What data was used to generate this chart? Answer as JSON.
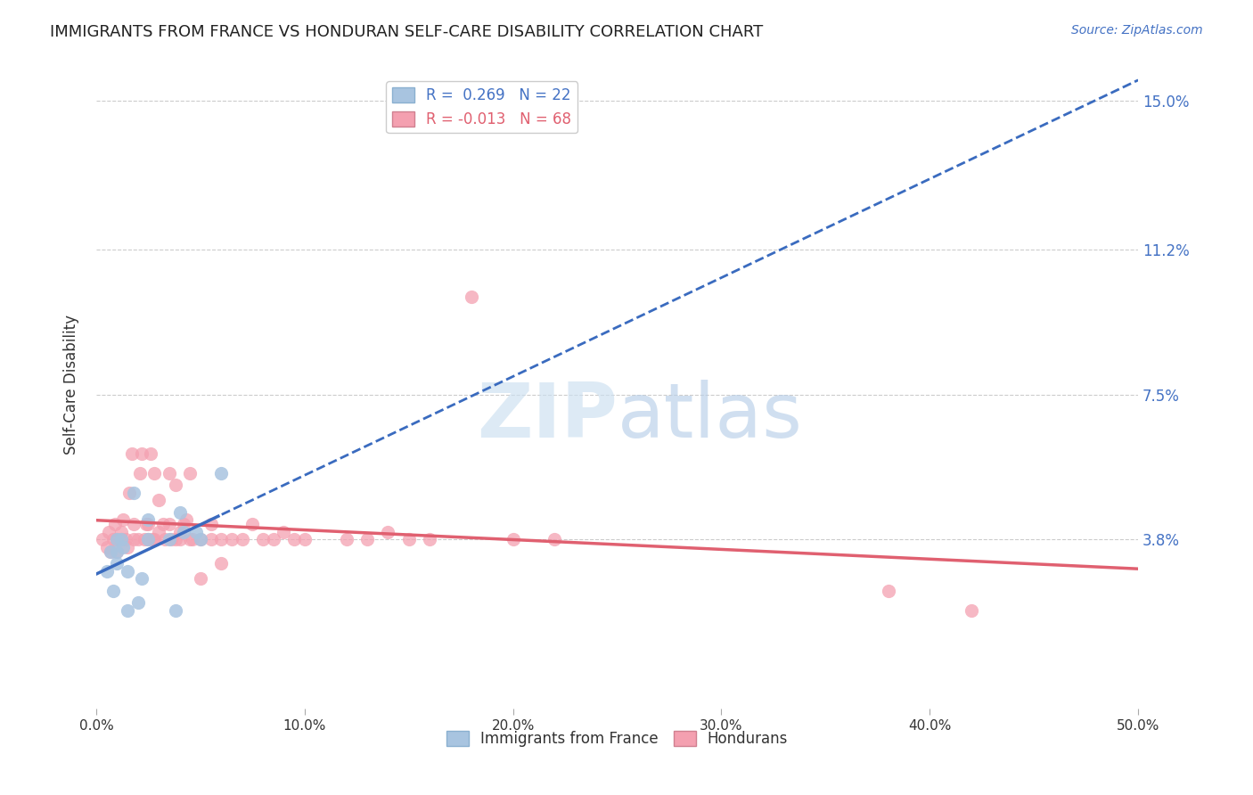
{
  "title": "IMMIGRANTS FROM FRANCE VS HONDURAN SELF-CARE DISABILITY CORRELATION CHART",
  "source": "Source: ZipAtlas.com",
  "ylabel": "Self-Care Disability",
  "ytick_labels": [
    "3.8%",
    "7.5%",
    "11.2%",
    "15.0%"
  ],
  "ytick_values": [
    0.038,
    0.075,
    0.112,
    0.15
  ],
  "xlim": [
    0.0,
    0.5
  ],
  "ylim": [
    -0.005,
    0.16
  ],
  "legend_1": "R =  0.269   N = 22",
  "legend_2": "R = -0.013   N = 68",
  "color_blue": "#a8c4e0",
  "color_pink": "#f4a0b0",
  "line_blue": "#3a6bbf",
  "line_pink": "#e06070",
  "france_x": [
    0.005,
    0.007,
    0.008,
    0.01,
    0.01,
    0.01,
    0.012,
    0.013,
    0.015,
    0.015,
    0.018,
    0.02,
    0.022,
    0.025,
    0.025,
    0.035,
    0.038,
    0.04,
    0.042,
    0.048,
    0.05,
    0.06
  ],
  "france_y": [
    0.03,
    0.035,
    0.025,
    0.035,
    0.038,
    0.032,
    0.038,
    0.036,
    0.02,
    0.03,
    0.05,
    0.022,
    0.028,
    0.038,
    0.043,
    0.038,
    0.02,
    0.045,
    0.04,
    0.04,
    0.038,
    0.055
  ],
  "honduran_x": [
    0.003,
    0.005,
    0.006,
    0.007,
    0.008,
    0.009,
    0.01,
    0.01,
    0.012,
    0.012,
    0.013,
    0.014,
    0.015,
    0.016,
    0.017,
    0.018,
    0.018,
    0.02,
    0.021,
    0.022,
    0.023,
    0.024,
    0.025,
    0.025,
    0.026,
    0.027,
    0.028,
    0.028,
    0.03,
    0.03,
    0.032,
    0.033,
    0.035,
    0.035,
    0.036,
    0.038,
    0.038,
    0.04,
    0.04,
    0.042,
    0.043,
    0.045,
    0.045,
    0.046,
    0.05,
    0.05,
    0.055,
    0.055,
    0.06,
    0.06,
    0.065,
    0.07,
    0.075,
    0.08,
    0.085,
    0.09,
    0.095,
    0.1,
    0.12,
    0.13,
    0.14,
    0.15,
    0.16,
    0.18,
    0.2,
    0.22,
    0.38,
    0.42
  ],
  "honduran_y": [
    0.038,
    0.036,
    0.04,
    0.035,
    0.038,
    0.042,
    0.038,
    0.035,
    0.04,
    0.038,
    0.043,
    0.038,
    0.036,
    0.05,
    0.06,
    0.038,
    0.042,
    0.038,
    0.055,
    0.06,
    0.038,
    0.042,
    0.038,
    0.042,
    0.06,
    0.038,
    0.055,
    0.038,
    0.04,
    0.048,
    0.042,
    0.038,
    0.042,
    0.055,
    0.038,
    0.052,
    0.038,
    0.04,
    0.038,
    0.042,
    0.043,
    0.038,
    0.055,
    0.038,
    0.038,
    0.028,
    0.038,
    0.042,
    0.038,
    0.032,
    0.038,
    0.038,
    0.042,
    0.038,
    0.038,
    0.04,
    0.038,
    0.038,
    0.038,
    0.038,
    0.04,
    0.038,
    0.038,
    0.1,
    0.038,
    0.038,
    0.025,
    0.02
  ]
}
